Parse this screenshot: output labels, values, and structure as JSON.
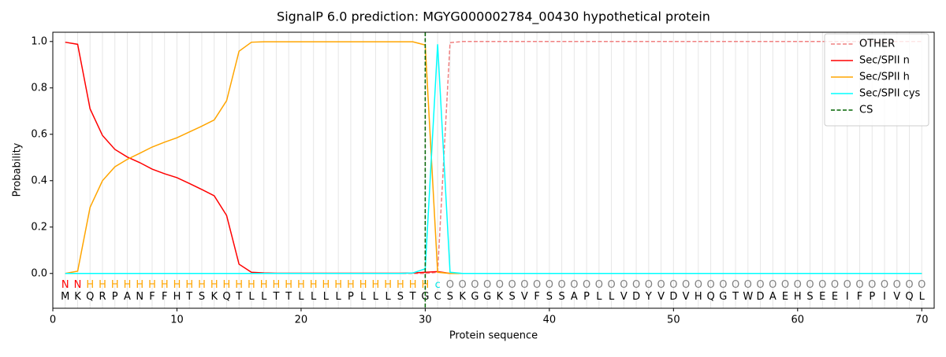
{
  "chart_data": {
    "type": "line",
    "title": "SignalP 6.0 prediction: MGYG000002784_00430 hypothetical protein",
    "x_label": "Protein sequence",
    "y_label": "Probability",
    "x": [
      1,
      2,
      3,
      4,
      5,
      6,
      7,
      8,
      9,
      10,
      11,
      12,
      13,
      14,
      15,
      16,
      17,
      18,
      19,
      20,
      21,
      22,
      23,
      24,
      25,
      26,
      27,
      28,
      29,
      30,
      31,
      32,
      33,
      34,
      35,
      36,
      37,
      38,
      39,
      40,
      41,
      42,
      43,
      44,
      45,
      46,
      47,
      48,
      49,
      50,
      51,
      52,
      53,
      54,
      55,
      56,
      57,
      58,
      59,
      60,
      61,
      62,
      63,
      64,
      65,
      66,
      67,
      68,
      69,
      70
    ],
    "sequence": [
      "M",
      "K",
      "Q",
      "R",
      "P",
      "A",
      "N",
      "F",
      "F",
      "H",
      "T",
      "S",
      "K",
      "Q",
      "T",
      "L",
      "L",
      "T",
      "T",
      "L",
      "L",
      "L",
      "L",
      "P",
      "L",
      "L",
      "L",
      "S",
      "T",
      "G",
      "C",
      "S",
      "K",
      "G",
      "G",
      "K",
      "S",
      "V",
      "F",
      "S",
      "S",
      "A",
      "P",
      "L",
      "L",
      "V",
      "D",
      "Y",
      "V",
      "D",
      "V",
      "H",
      "Q",
      "G",
      "T",
      "W",
      "D",
      "A",
      "E",
      "H",
      "S",
      "E",
      "E",
      "I",
      "F",
      "P",
      "I",
      "V",
      "Q",
      "L"
    ],
    "region_labels": [
      "N",
      "N",
      "H",
      "H",
      "H",
      "H",
      "H",
      "H",
      "H",
      "H",
      "H",
      "H",
      "H",
      "H",
      "H",
      "H",
      "H",
      "H",
      "H",
      "H",
      "H",
      "H",
      "H",
      "H",
      "H",
      "H",
      "H",
      "H",
      "H",
      "H",
      "c",
      "O",
      "O",
      "O",
      "O",
      "O",
      "O",
      "O",
      "O",
      "O",
      "O",
      "O",
      "O",
      "O",
      "O",
      "O",
      "O",
      "O",
      "O",
      "O",
      "O",
      "O",
      "O",
      "O",
      "O",
      "O",
      "O",
      "O",
      "O",
      "O",
      "O",
      "O",
      "O",
      "O",
      "O",
      "O",
      "O",
      "O",
      "O",
      "O"
    ],
    "region_colors": {
      "N": "#ff0000",
      "H": "#ffa500",
      "c": "#00e5e5",
      "O": "#808080"
    },
    "series": [
      {
        "name": "OTHER",
        "color": "#f08080",
        "dashed": true,
        "values": [
          0,
          0,
          0,
          0,
          0,
          0,
          0,
          0,
          0,
          0,
          0,
          0,
          0,
          0,
          0,
          0,
          0,
          0,
          0,
          0,
          0,
          0,
          0,
          0,
          0,
          0,
          0,
          0,
          0,
          0,
          0.005,
          0.995,
          1,
          1,
          1,
          1,
          1,
          1,
          1,
          1,
          1,
          1,
          1,
          1,
          1,
          1,
          1,
          1,
          1,
          1,
          1,
          1,
          1,
          1,
          1,
          1,
          1,
          1,
          1,
          1,
          1,
          1,
          1,
          1,
          1,
          1,
          1,
          1,
          1,
          1
        ]
      },
      {
        "name": "Sec/SPII n",
        "color": "#ff0000",
        "values": [
          0.997,
          0.988,
          0.71,
          0.595,
          0.535,
          0.502,
          0.478,
          0.45,
          0.43,
          0.413,
          0.388,
          0.362,
          0.335,
          0.25,
          0.04,
          0.005,
          0.002,
          0.001,
          0.001,
          0.001,
          0.001,
          0.001,
          0.001,
          0.001,
          0.001,
          0.001,
          0.001,
          0.001,
          0.002,
          0.005,
          0.008,
          0,
          0,
          0,
          0,
          0,
          0,
          0,
          0,
          0,
          0,
          0,
          0,
          0,
          0,
          0,
          0,
          0,
          0,
          0,
          0,
          0,
          0,
          0,
          0,
          0,
          0,
          0,
          0,
          0,
          0,
          0,
          0,
          0,
          0,
          0,
          0,
          0,
          0,
          0
        ]
      },
      {
        "name": "Sec/SPII h",
        "color": "#ffa500",
        "values": [
          0,
          0.01,
          0.285,
          0.4,
          0.46,
          0.492,
          0.518,
          0.545,
          0.566,
          0.585,
          0.61,
          0.635,
          0.662,
          0.745,
          0.958,
          0.997,
          0.999,
          0.999,
          0.999,
          0.999,
          0.999,
          0.999,
          0.999,
          0.999,
          0.999,
          0.999,
          0.999,
          0.999,
          0.999,
          0.985,
          0.005,
          0,
          0,
          0,
          0,
          0,
          0,
          0,
          0,
          0,
          0,
          0,
          0,
          0,
          0,
          0,
          0,
          0,
          0,
          0,
          0,
          0,
          0,
          0,
          0,
          0,
          0,
          0,
          0,
          0,
          0,
          0,
          0,
          0,
          0,
          0,
          0,
          0,
          0,
          0
        ]
      },
      {
        "name": "Sec/SPII cys",
        "color": "#00ffff",
        "values": [
          0,
          0,
          0,
          0,
          0,
          0,
          0,
          0,
          0,
          0,
          0,
          0,
          0,
          0,
          0,
          0,
          0,
          0,
          0,
          0,
          0,
          0,
          0,
          0,
          0,
          0,
          0,
          0,
          0.002,
          0.02,
          0.988,
          0.005,
          0,
          0,
          0,
          0,
          0,
          0,
          0,
          0,
          0,
          0,
          0,
          0,
          0,
          0,
          0,
          0,
          0,
          0,
          0,
          0,
          0,
          0,
          0,
          0,
          0,
          0,
          0,
          0,
          0,
          0,
          0,
          0,
          0,
          0,
          0,
          0,
          0,
          0
        ]
      }
    ],
    "vlines": [
      {
        "name": "CS",
        "color": "#006400",
        "x": 30
      }
    ],
    "xlim": [
      0,
      71
    ],
    "ylim": [
      -0.15,
      1.04
    ],
    "xticks": [
      0,
      10,
      20,
      30,
      40,
      50,
      60,
      70
    ],
    "yticks": [
      {
        "value": 0,
        "label": "0.0"
      },
      {
        "value": 0.2,
        "label": "0.2"
      },
      {
        "value": 0.4,
        "label": "0.4"
      },
      {
        "value": 0.6,
        "label": "0.6"
      },
      {
        "value": 0.8,
        "label": "0.8"
      },
      {
        "value": 1,
        "label": "1.0"
      }
    ],
    "legend": "upper right"
  }
}
